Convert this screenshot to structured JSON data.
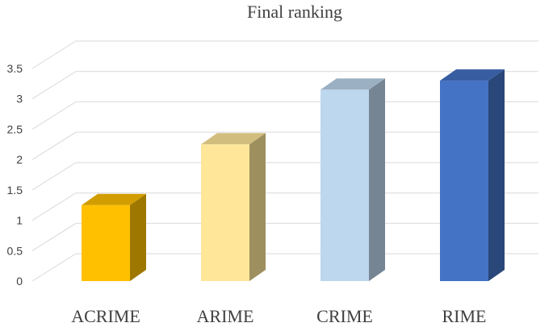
{
  "chart_data": {
    "type": "bar",
    "title": "Final ranking",
    "categories": [
      "ACRIME",
      "ARIME",
      "CRIME",
      "RIME"
    ],
    "values": [
      1.25,
      2.25,
      3.15,
      3.3
    ],
    "colors": [
      "#ffc000",
      "#ffe699",
      "#bdd7ee",
      "#4472c4"
    ],
    "ylim": [
      0,
      3.5
    ],
    "yticks": [
      "0",
      "0.5",
      "1",
      "1.5",
      "2",
      "2.5",
      "3",
      "3.5"
    ],
    "grid": true,
    "legend": "none",
    "style": "3d-column"
  }
}
